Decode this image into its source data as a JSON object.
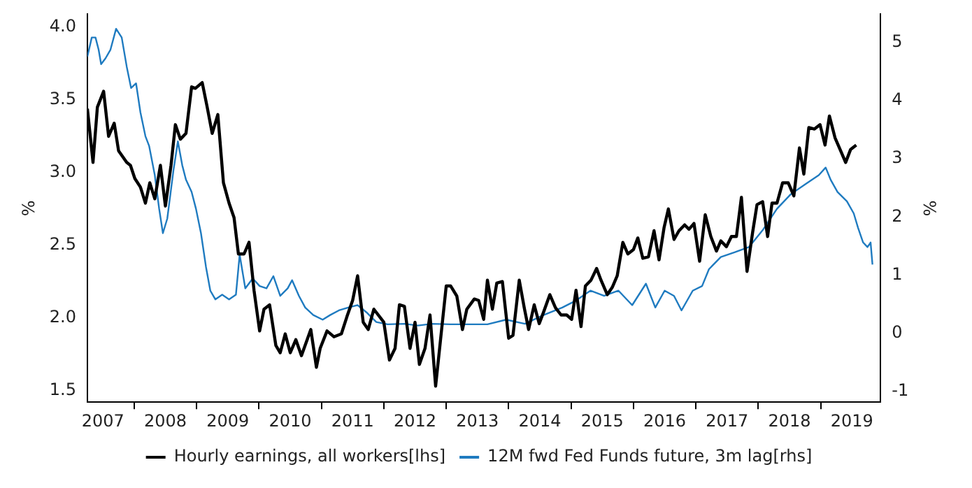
{
  "chart_data": {
    "type": "line",
    "ylabel": "%",
    "y2label": "%",
    "legend": "bottom",
    "grid": false,
    "marker": "none",
    "line_style": "solid",
    "xlim": [
      2007.25,
      2019.96
    ],
    "xticks": [
      {
        "value": 2007.5,
        "label": "2007"
      },
      {
        "value": 2008,
        "label": null
      },
      {
        "value": 2008.5,
        "label": "2008"
      },
      {
        "value": 2009,
        "label": null
      },
      {
        "value": 2009.5,
        "label": "2009"
      },
      {
        "value": 2010,
        "label": null
      },
      {
        "value": 2010.5,
        "label": "2010"
      },
      {
        "value": 2011,
        "label": null
      },
      {
        "value": 2011.5,
        "label": "2011"
      },
      {
        "value": 2012,
        "label": null
      },
      {
        "value": 2012.5,
        "label": "2012"
      },
      {
        "value": 2013,
        "label": null
      },
      {
        "value": 2013.5,
        "label": "2013"
      },
      {
        "value": 2014,
        "label": null
      },
      {
        "value": 2014.5,
        "label": "2014"
      },
      {
        "value": 2015,
        "label": null
      },
      {
        "value": 2015.5,
        "label": "2015"
      },
      {
        "value": 2016,
        "label": null
      },
      {
        "value": 2016.5,
        "label": "2016"
      },
      {
        "value": 2017,
        "label": null
      },
      {
        "value": 2017.5,
        "label": "2017"
      },
      {
        "value": 2018,
        "label": null
      },
      {
        "value": 2018.5,
        "label": "2018"
      },
      {
        "value": 2019,
        "label": null
      },
      {
        "value": 2019.5,
        "label": "2019"
      }
    ],
    "ylim": [
      1.42,
      4.09
    ],
    "yticks": [
      {
        "value": 1.5,
        "label": "1.5"
      },
      {
        "value": 2,
        "label": "2.0"
      },
      {
        "value": 2.5,
        "label": "2.5"
      },
      {
        "value": 3,
        "label": "3.0"
      },
      {
        "value": 3.5,
        "label": "3.5"
      },
      {
        "value": 4,
        "label": "4.0"
      }
    ],
    "y2lim": [
      -1.19,
      5.49
    ],
    "y2ticks": [
      -1,
      0,
      1,
      2,
      3,
      4,
      5
    ],
    "series": [
      {
        "name": "Hourly earnings, all workers[lhs]",
        "color": "#000000",
        "x": [
          2007.25,
          2007.34,
          2007.41,
          2007.51,
          2007.59,
          2007.68,
          2007.75,
          2007.88,
          2007.94,
          2008.01,
          2008.1,
          2008.18,
          2008.25,
          2008.33,
          2008.42,
          2008.5,
          2008.59,
          2008.66,
          2008.74,
          2008.83,
          2008.92,
          2008.98,
          2009.09,
          2009.17,
          2009.25,
          2009.34,
          2009.43,
          2009.52,
          2009.6,
          2009.67,
          2009.76,
          2009.84,
          2009.92,
          2010.01,
          2010.08,
          2010.17,
          2010.27,
          2010.34,
          2010.42,
          2010.5,
          2010.59,
          2010.68,
          2010.83,
          2010.92,
          2010.98,
          2011.09,
          2011.2,
          2011.32,
          2011.41,
          2011.5,
          2011.58,
          2011.67,
          2011.75,
          2011.84,
          2012,
          2012.09,
          2012.18,
          2012.25,
          2012.33,
          2012.42,
          2012.5,
          2012.57,
          2012.66,
          2012.74,
          2012.83,
          2013,
          2013.07,
          2013.17,
          2013.26,
          2013.33,
          2013.45,
          2013.52,
          2013.6,
          2013.66,
          2013.74,
          2013.81,
          2013.9,
          2014,
          2014.07,
          2014.17,
          2014.25,
          2014.32,
          2014.41,
          2014.49,
          2014.56,
          2014.66,
          2014.75,
          2014.84,
          2014.93,
          2015.01,
          2015.08,
          2015.16,
          2015.23,
          2015.32,
          2015.41,
          2015.48,
          2015.58,
          2015.66,
          2015.74,
          2015.83,
          2015.91,
          2016,
          2016.07,
          2016.15,
          2016.24,
          2016.33,
          2016.41,
          2016.49,
          2016.56,
          2016.65,
          2016.73,
          2016.82,
          2016.89,
          2016.97,
          2017.06,
          2017.15,
          2017.24,
          2017.33,
          2017.4,
          2017.49,
          2017.57,
          2017.65,
          2017.73,
          2017.82,
          2017.91,
          2017.98,
          2018.07,
          2018.15,
          2018.22,
          2018.3,
          2018.39,
          2018.48,
          2018.57,
          2018.66,
          2018.73,
          2018.81,
          2018.9,
          2018.99,
          2019.07,
          2019.14,
          2019.23,
          2019.32,
          2019.4,
          2019.48,
          2019.57
        ],
        "values": [
          3.44,
          3.07,
          3.45,
          3.56,
          3.25,
          3.34,
          3.15,
          3.07,
          3.05,
          2.96,
          2.9,
          2.79,
          2.93,
          2.82,
          3.05,
          2.77,
          3.05,
          3.33,
          3.23,
          3.27,
          3.59,
          3.58,
          3.62,
          3.45,
          3.27,
          3.4,
          2.93,
          2.79,
          2.69,
          2.44,
          2.44,
          2.52,
          2.19,
          1.91,
          2.06,
          2.09,
          1.81,
          1.76,
          1.89,
          1.76,
          1.85,
          1.74,
          1.92,
          1.66,
          1.79,
          1.91,
          1.87,
          1.89,
          2.01,
          2.12,
          2.29,
          1.97,
          1.92,
          2.06,
          1.97,
          1.71,
          1.79,
          2.09,
          2.08,
          1.79,
          1.97,
          1.68,
          1.79,
          2.02,
          1.53,
          2.22,
          2.22,
          2.15,
          1.92,
          2.06,
          2.13,
          2.12,
          1.99,
          2.26,
          2.06,
          2.24,
          2.25,
          1.86,
          1.88,
          2.26,
          2.07,
          1.92,
          2.09,
          1.96,
          2.04,
          2.16,
          2.07,
          2.02,
          2.02,
          1.99,
          2.19,
          1.94,
          2.22,
          2.26,
          2.34,
          2.26,
          2.16,
          2.21,
          2.29,
          2.52,
          2.44,
          2.47,
          2.55,
          2.41,
          2.42,
          2.6,
          2.4,
          2.62,
          2.75,
          2.54,
          2.6,
          2.64,
          2.61,
          2.65,
          2.39,
          2.71,
          2.56,
          2.46,
          2.53,
          2.49,
          2.56,
          2.56,
          2.83,
          2.32,
          2.59,
          2.78,
          2.8,
          2.56,
          2.79,
          2.79,
          2.93,
          2.93,
          2.84,
          3.17,
          2.99,
          3.31,
          3.3,
          3.33,
          3.19,
          3.39,
          3.24,
          3.15,
          3.07,
          3.16,
          3.19
        ]
      },
      {
        "name": "12M fwd Fed Funds future, 3m lag[rhs]",
        "color": "#1f7bc0",
        "axis": "y2",
        "x": [
          2007.25,
          2007.32,
          2007.38,
          2007.43,
          2007.47,
          2007.54,
          2007.62,
          2007.71,
          2007.8,
          2007.88,
          2007.95,
          2008.03,
          2008.1,
          2008.18,
          2008.24,
          2008.33,
          2008.4,
          2008.46,
          2008.53,
          2008.63,
          2008.7,
          2008.77,
          2008.83,
          2008.92,
          2008.99,
          2009.07,
          2009.15,
          2009.22,
          2009.3,
          2009.41,
          2009.52,
          2009.63,
          2009.69,
          2009.78,
          2009.9,
          2010.01,
          2010.12,
          2010.23,
          2010.34,
          2010.46,
          2010.53,
          2010.64,
          2010.74,
          2010.87,
          2011.02,
          2011.14,
          2011.28,
          2011.43,
          2011.58,
          2011.73,
          2011.88,
          2012.06,
          2012.33,
          2012.55,
          2012.77,
          2013.07,
          2013.52,
          2013.66,
          2013.96,
          2014.26,
          2014.56,
          2014.86,
          2015.08,
          2015.31,
          2015.53,
          2015.76,
          2015.98,
          2016.2,
          2016.35,
          2016.5,
          2016.65,
          2016.77,
          2016.95,
          2017.1,
          2017.21,
          2017.4,
          2017.62,
          2017.85,
          2018.07,
          2018.3,
          2018.52,
          2018.75,
          2018.97,
          2019.08,
          2019.16,
          2019.27,
          2019.42,
          2019.53,
          2019.6,
          2019.68,
          2019.75,
          2019.8,
          2019.83
        ],
        "values": [
          4.76,
          5.09,
          5.09,
          4.88,
          4.63,
          4.73,
          4.88,
          5.24,
          5.09,
          4.59,
          4.22,
          4.3,
          3.8,
          3.39,
          3.22,
          2.72,
          2.14,
          1.72,
          1.97,
          2.81,
          3.3,
          2.89,
          2.64,
          2.43,
          2.14,
          1.72,
          1.14,
          0.73,
          0.58,
          0.66,
          0.58,
          0.66,
          1.35,
          0.77,
          0.94,
          0.81,
          0.77,
          0.98,
          0.64,
          0.77,
          0.91,
          0.64,
          0.44,
          0.31,
          0.23,
          0.31,
          0.39,
          0.44,
          0.48,
          0.35,
          0.19,
          0.15,
          0.16,
          0.13,
          0.16,
          0.15,
          0.15,
          0.15,
          0.23,
          0.16,
          0.31,
          0.44,
          0.56,
          0.73,
          0.64,
          0.73,
          0.48,
          0.85,
          0.44,
          0.73,
          0.64,
          0.39,
          0.73,
          0.81,
          1.1,
          1.31,
          1.39,
          1.48,
          1.77,
          2.14,
          2.39,
          2.56,
          2.72,
          2.85,
          2.64,
          2.43,
          2.27,
          2.06,
          1.81,
          1.56,
          1.48,
          1.56,
          1.18
        ]
      }
    ]
  }
}
